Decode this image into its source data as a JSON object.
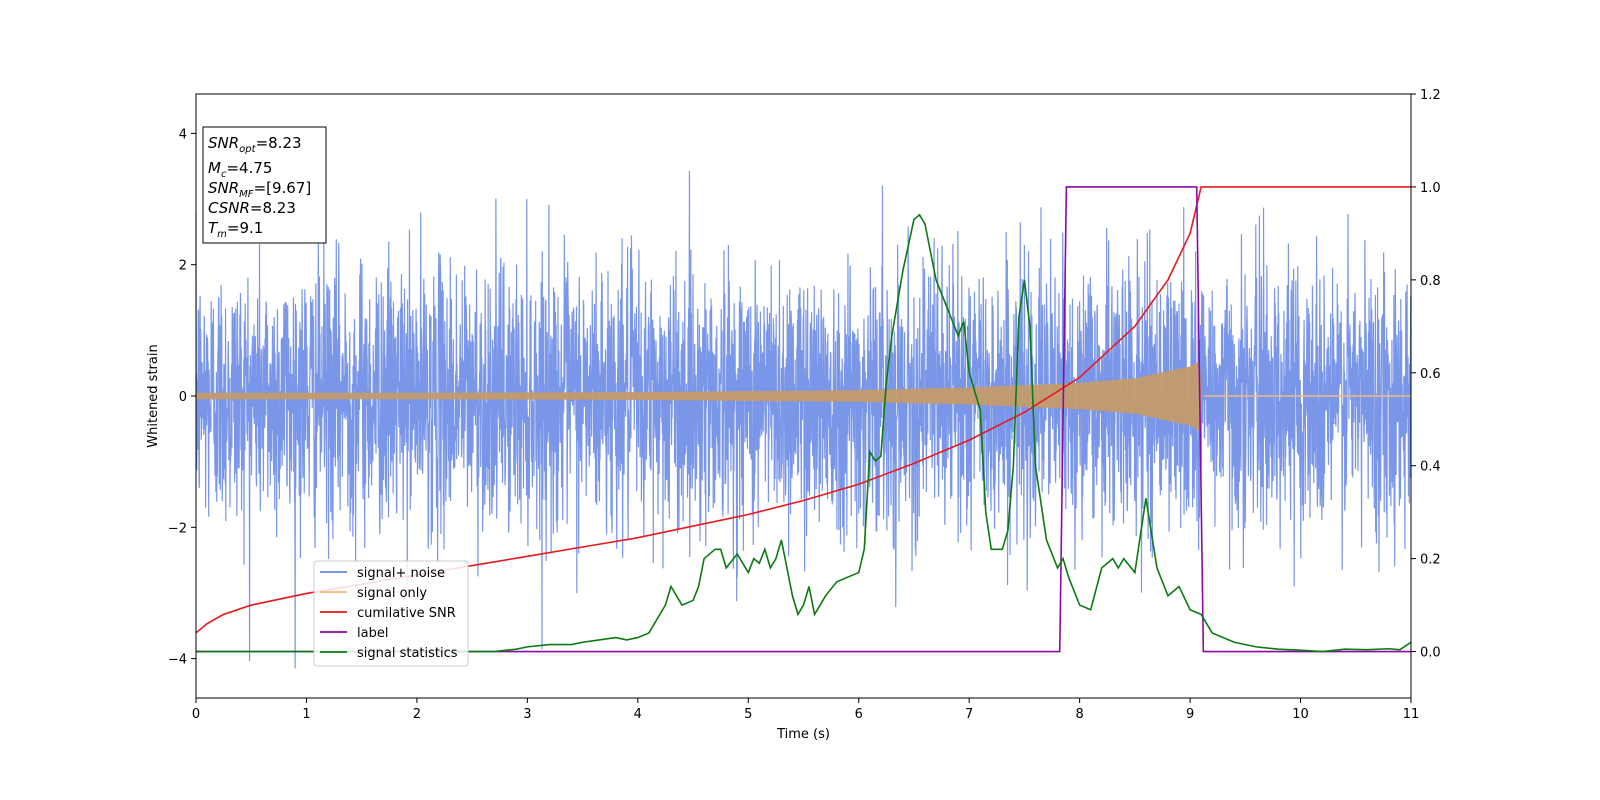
{
  "chart_data": {
    "type": "line",
    "xlabel": "Time (s)",
    "ylabel": "Whitened strain",
    "xlim": [
      0,
      11
    ],
    "ylim_left": [
      -4.6,
      4.6
    ],
    "ylim_right": [
      -0.1,
      1.2
    ],
    "x_ticks": [
      "0",
      "1",
      "2",
      "3",
      "4",
      "5",
      "6",
      "7",
      "8",
      "9",
      "10",
      "11"
    ],
    "y_ticks_left": [
      "−4",
      "−2",
      "0",
      "2",
      "4"
    ],
    "y_ticks_right": [
      "0.0",
      "0.2",
      "0.4",
      "0.6",
      "0.8",
      "1.0",
      "1.2"
    ],
    "grid": false,
    "legend_position": "lower-left",
    "info_box": {
      "snr_opt": "=8.23",
      "mc": "=4.75",
      "snr_mf": "=[9.67]",
      "csnr": "=8.23",
      "tm": "=9.1"
    },
    "series": [
      {
        "name": "signal+ noise",
        "axis": "left",
        "color": "#6a8be5",
        "description_points": {
          "x": [
            0,
            11
          ],
          "y_typical_range": [
            -2.0,
            2.3
          ],
          "y_max": 4.15,
          "y_min": -4.15
        }
      },
      {
        "name": "signal only",
        "axis": "left",
        "color": "#f5b87a",
        "envelope": {
          "x": [
            0,
            2,
            4,
            6,
            7,
            8,
            8.5,
            9,
            9.1
          ],
          "amplitude": [
            0.05,
            0.05,
            0.06,
            0.09,
            0.13,
            0.2,
            0.27,
            0.45,
            0.55
          ]
        }
      },
      {
        "name": "cumilative SNR",
        "axis": "right",
        "color": "#e8191b",
        "x": [
          0,
          0.1,
          0.25,
          0.5,
          1,
          1.5,
          2,
          2.5,
          3,
          3.5,
          4,
          4.5,
          5,
          5.5,
          6,
          6.5,
          7,
          7.5,
          8,
          8.5,
          8.8,
          9.0,
          9.1,
          11
        ],
        "y": [
          0.04,
          0.06,
          0.08,
          0.1,
          0.125,
          0.145,
          0.165,
          0.185,
          0.205,
          0.225,
          0.245,
          0.27,
          0.295,
          0.325,
          0.36,
          0.405,
          0.455,
          0.515,
          0.59,
          0.7,
          0.8,
          0.9,
          1.0,
          1.0
        ]
      },
      {
        "name": "label",
        "axis": "right",
        "color": "#8b0aa5",
        "x": [
          0,
          7.82,
          7.88,
          9.06,
          9.12,
          11
        ],
        "y": [
          0,
          0,
          1,
          1,
          0,
          0
        ]
      },
      {
        "name": "signal statistics",
        "axis": "right",
        "color": "#0b7a12",
        "x": [
          0,
          2.7,
          2.9,
          3.0,
          3.2,
          3.4,
          3.5,
          3.65,
          3.8,
          3.9,
          4.0,
          4.1,
          4.2,
          4.25,
          4.3,
          4.4,
          4.5,
          4.55,
          4.6,
          4.7,
          4.75,
          4.8,
          4.9,
          5.0,
          5.05,
          5.1,
          5.15,
          5.2,
          5.25,
          5.3,
          5.4,
          5.45,
          5.5,
          5.55,
          5.6,
          5.7,
          5.8,
          5.9,
          6.0,
          6.05,
          6.1,
          6.15,
          6.2,
          6.25,
          6.3,
          6.4,
          6.5,
          6.55,
          6.6,
          6.65,
          6.7,
          6.8,
          6.9,
          6.95,
          7.0,
          7.1,
          7.15,
          7.2,
          7.3,
          7.35,
          7.4,
          7.45,
          7.5,
          7.55,
          7.6,
          7.7,
          7.8,
          7.85,
          7.9,
          8.0,
          8.1,
          8.2,
          8.3,
          8.35,
          8.4,
          8.5,
          8.6,
          8.7,
          8.75,
          8.8,
          8.9,
          9.0,
          9.1,
          9.2,
          9.4,
          9.6,
          9.8,
          10.0,
          10.2,
          10.4,
          10.6,
          10.8,
          10.9,
          11.0
        ],
        "y": [
          0.0,
          0.0,
          0.005,
          0.01,
          0.015,
          0.015,
          0.02,
          0.025,
          0.03,
          0.025,
          0.03,
          0.04,
          0.08,
          0.1,
          0.14,
          0.1,
          0.11,
          0.14,
          0.2,
          0.22,
          0.22,
          0.18,
          0.21,
          0.17,
          0.2,
          0.19,
          0.22,
          0.18,
          0.2,
          0.24,
          0.12,
          0.08,
          0.1,
          0.14,
          0.08,
          0.12,
          0.15,
          0.16,
          0.17,
          0.22,
          0.43,
          0.41,
          0.42,
          0.58,
          0.68,
          0.82,
          0.93,
          0.94,
          0.92,
          0.86,
          0.8,
          0.74,
          0.68,
          0.71,
          0.6,
          0.52,
          0.3,
          0.22,
          0.22,
          0.26,
          0.4,
          0.72,
          0.8,
          0.7,
          0.4,
          0.24,
          0.18,
          0.2,
          0.16,
          0.1,
          0.09,
          0.18,
          0.2,
          0.18,
          0.2,
          0.17,
          0.33,
          0.18,
          0.15,
          0.12,
          0.14,
          0.09,
          0.08,
          0.04,
          0.02,
          0.01,
          0.005,
          0.003,
          0.0,
          0.005,
          0.004,
          0.006,
          0.004,
          0.02
        ]
      }
    ]
  },
  "legend": [
    {
      "label": "signal+ noise",
      "color": "#6a8be5"
    },
    {
      "label": "signal only",
      "color": "#f5b87a"
    },
    {
      "label": "cumilative SNR",
      "color": "#e8191b"
    },
    {
      "label": "label",
      "color": "#8b0aa5"
    },
    {
      "label": "signal statistics",
      "color": "#0b7a12"
    }
  ]
}
